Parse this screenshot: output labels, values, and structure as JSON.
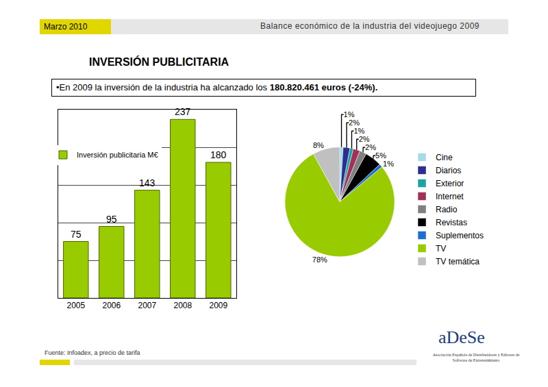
{
  "page": {
    "date": "Marzo 2010",
    "header": "Balance económico de la industria del videojuego 2009",
    "title": "INVERSIÓN PUBLICITARIA",
    "summary": {
      "text": "•En 2009 la inversión de la industria ha alcanzado los ",
      "bold": "180.820.461 euros (-24%)."
    },
    "source": "Fuente: Infoadex, a precio de tarifa",
    "logo": "aDeSe",
    "logo_caption": "Asociación Española de Distribuidores y Editores de Software de Entretenimiento"
  },
  "chart_data": [
    {
      "type": "bar",
      "categories": [
        "2005",
        "2006",
        "2007",
        "2008",
        "2009"
      ],
      "series": [
        {
          "name": "Inversión publicitaria M€",
          "color": "#99cc00",
          "values": [
            75,
            95,
            143,
            237,
            180
          ]
        }
      ],
      "ylim": [
        0,
        250
      ],
      "yticks": [
        0,
        50,
        100,
        150,
        200,
        250
      ],
      "grid": true,
      "data_labels": true,
      "tick_labels": "x",
      "legend": "upper left"
    },
    {
      "type": "pie",
      "categories": [
        "Cine",
        "Diarios",
        "Exterior",
        "Internet",
        "Radio",
        "Revistas",
        "Suplementos",
        "TV",
        "TV temática"
      ],
      "values": [
        1,
        2,
        1,
        2,
        2,
        5,
        1,
        78,
        8
      ],
      "value_labels": [
        "1%",
        "2%",
        "1%",
        "2%",
        "2%",
        "5%",
        "1%",
        "78%",
        "8%"
      ],
      "colors": [
        "#a6dcea",
        "#2b2f8f",
        "#1aa3a3",
        "#a0325a",
        "#808080",
        "#000000",
        "#1f6fd1",
        "#99cc00",
        "#c0c0c0"
      ],
      "data_labels": true,
      "legend": "right"
    }
  ]
}
